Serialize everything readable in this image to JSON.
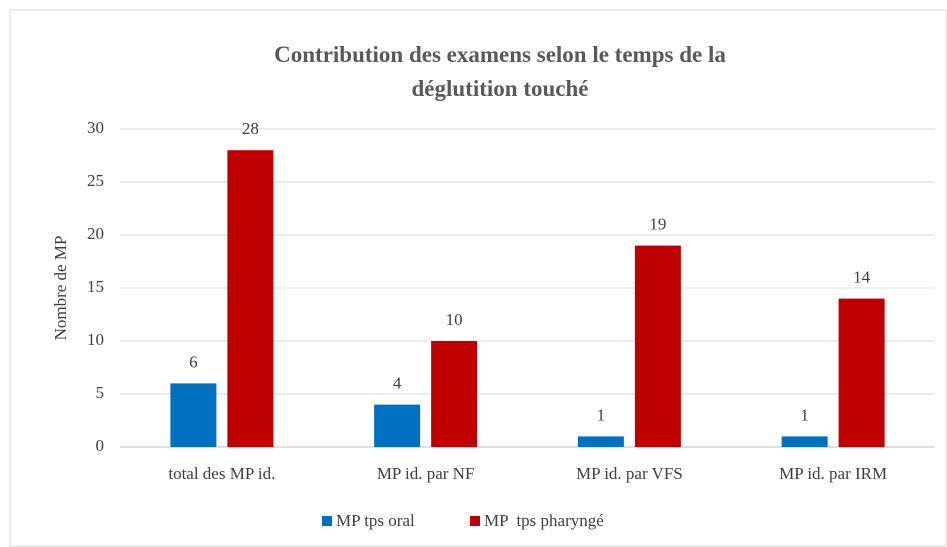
{
  "chart_data": {
    "type": "bar",
    "title": "Contribution des examens selon le temps de la déglutition touché",
    "y_label": "Nombre de MP",
    "categories": [
      "total des MP id.",
      "MP id. par NF",
      "MP id. par VFS",
      "MP id. par IRM"
    ],
    "series": [
      {
        "name": "MP tps oral",
        "color": "#0070c0",
        "values": [
          6,
          4,
          1,
          1
        ]
      },
      {
        "name": "MP  tps pharyngé",
        "color": "#c00000",
        "values": [
          28,
          10,
          19,
          14
        ]
      }
    ],
    "ylim": [
      0,
      30
    ],
    "yticks": [
      0,
      5,
      10,
      15,
      20,
      25,
      30
    ],
    "grid": true,
    "legend": "bottom"
  }
}
